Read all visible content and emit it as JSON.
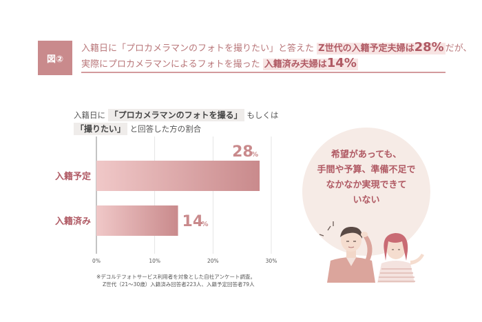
{
  "header": {
    "badge": "図②",
    "line1_pre": "入籍日に「プロカメラマンのフォトを撮りたい」と答えた",
    "line1_hl": "Z世代の入籍予定夫婦は",
    "line1_pct": "28%",
    "line1_post": "だが、",
    "line2_pre": "実際にプロカメラマンによるフォトを撮った",
    "line2_hl": "入籍済み夫婦は",
    "line2_pct": "14%"
  },
  "question": {
    "l1_pre": "入籍日に",
    "l1_hl": "「プロカメラマンのフォトを撮る」",
    "l1_post": "もしくは",
    "l2_hl": "「撮りたい」",
    "l2_post": "と回答した方の割合"
  },
  "chart_data": {
    "type": "bar",
    "orientation": "horizontal",
    "categories": [
      "入籍予定",
      "入籍済み"
    ],
    "values": [
      28,
      14
    ],
    "value_labels": [
      "28",
      "14"
    ],
    "value_unit": "%",
    "xlim": [
      0,
      30
    ],
    "xticks": [
      "0%",
      "10%",
      "20%",
      "30%"
    ],
    "grid": true,
    "colors": {
      "bar_start": "#f0c8c8",
      "bar_end": "#c98a8c"
    }
  },
  "notes": {
    "n1": "※デコルテフォトサービス利用者を対象とした自社アンケート調査。",
    "n2": "Z世代（21〜30歳）入籍済み回答者223人、入籍予定回答者79人"
  },
  "bubble": {
    "lines": [
      "希望があっても、",
      "手間や予算、準備不足で",
      "なかなか実現できて",
      "いない"
    ]
  },
  "colors": {
    "accent": "#c98a8c",
    "text_accent": "#b05a64",
    "bubble_bg": "#f6ebe6"
  }
}
